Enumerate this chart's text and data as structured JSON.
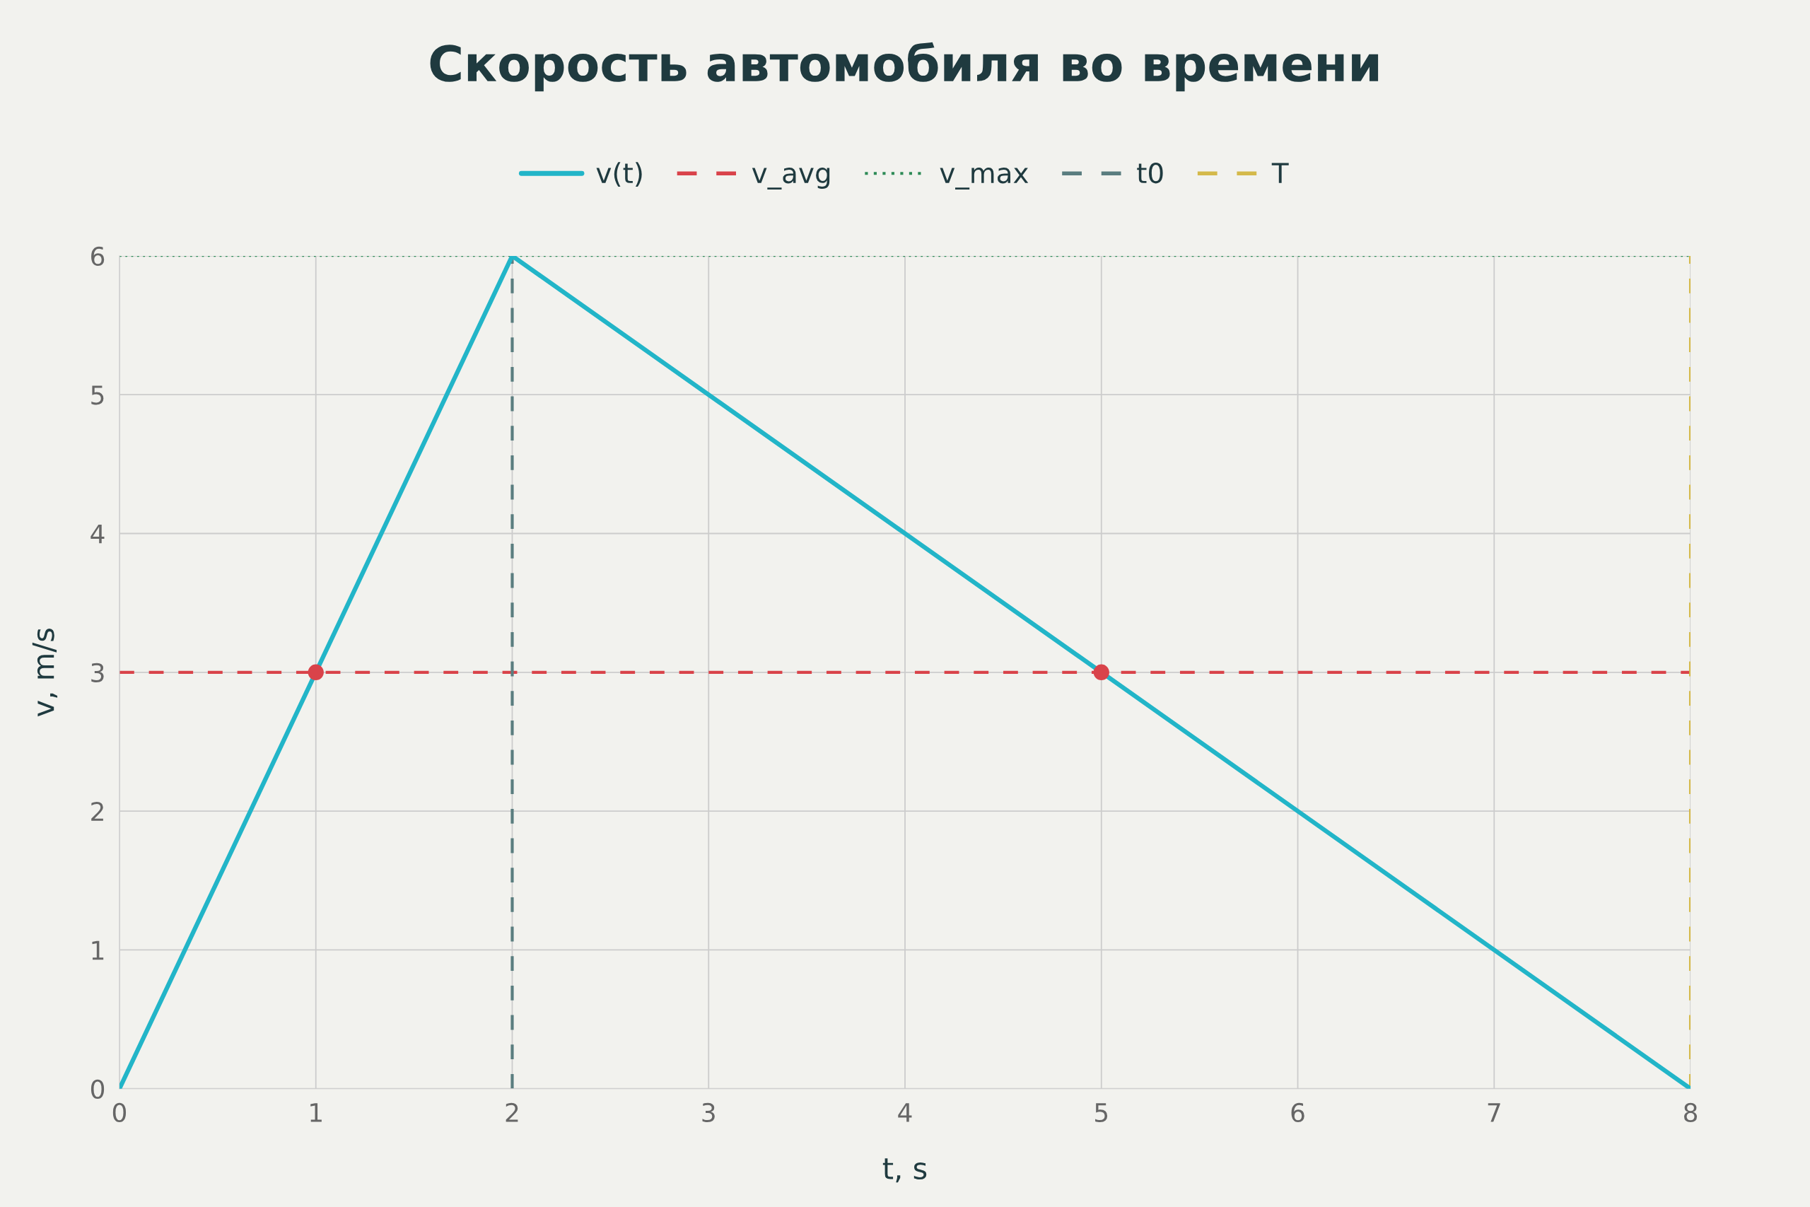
{
  "chart_data": {
    "type": "line",
    "title": "Скорость автомобиля во времени",
    "xlabel": "t, s",
    "ylabel": "v, m/s",
    "xlim": [
      0,
      8
    ],
    "ylim": [
      0,
      6
    ],
    "xticks": [
      0,
      1,
      2,
      3,
      4,
      5,
      6,
      7,
      8
    ],
    "yticks": [
      0,
      1,
      2,
      3,
      4,
      5,
      6
    ],
    "series": [
      {
        "name": "v(t)",
        "color": "#22b5c8",
        "x": [
          0,
          2,
          8
        ],
        "values": [
          0,
          6,
          0
        ],
        "line_style": "solid",
        "marker": "none"
      },
      {
        "type": "scatter",
        "color": "#d9434a",
        "x": [
          1,
          5
        ],
        "values": [
          3,
          3
        ],
        "marker": "circle"
      }
    ],
    "ref_lines": [
      {
        "axis": "y",
        "value": 3,
        "label": "v_avg",
        "color": "#d9434a",
        "line_style": "dashed"
      },
      {
        "axis": "y",
        "value": 6,
        "label": "v_max",
        "color": "#2e8b57",
        "line_style": "dotted"
      },
      {
        "axis": "x",
        "value": 2,
        "label": "t0",
        "color": "#5a7d7f",
        "line_style": "dashed"
      },
      {
        "axis": "x",
        "value": 8,
        "label": "T",
        "color": "#d4b94a",
        "line_style": "dashed"
      }
    ],
    "grid": true,
    "legend": "top"
  }
}
